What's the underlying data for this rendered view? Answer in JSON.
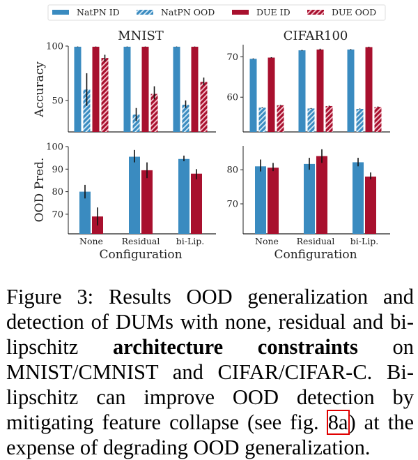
{
  "legend": [
    {
      "label": "NatPN ID",
      "color": "#3a8bc0",
      "hatched": false
    },
    {
      "label": "NatPN OOD",
      "color": "#3a8bc0",
      "hatched": true
    },
    {
      "label": "DUE ID",
      "color": "#a8102e",
      "hatched": false
    },
    {
      "label": "DUE OOD",
      "color": "#a8102e",
      "hatched": true
    }
  ],
  "chart_data": [
    {
      "type": "bar",
      "panel": "top-left",
      "title": "MNIST",
      "ylabel": "Accuracy",
      "xlabel": "",
      "categories": [
        "None",
        "Residual",
        "bi-Lip."
      ],
      "show_xticklabels": false,
      "ylim": [
        21,
        100
      ],
      "yticks": [
        50,
        100
      ],
      "series": [
        {
          "name": "NatPN ID",
          "values": [
            99.4,
            99.4,
            99.4
          ],
          "err_low": [
            99.2,
            99.2,
            99.2
          ],
          "err_high": [
            99.6,
            99.6,
            99.6
          ]
        },
        {
          "name": "NatPN OOD",
          "values": [
            60,
            37,
            46
          ],
          "err_low": [
            45,
            31,
            43
          ],
          "err_high": [
            75,
            43,
            50
          ]
        },
        {
          "name": "DUE ID",
          "values": [
            99.4,
            99.4,
            99.4
          ],
          "err_low": [
            99.2,
            99.2,
            99.2
          ],
          "err_high": [
            99.6,
            99.6,
            99.6
          ]
        },
        {
          "name": "DUE OOD",
          "values": [
            89,
            56,
            67
          ],
          "err_low": [
            86,
            51,
            64
          ],
          "err_high": [
            92,
            63,
            71
          ]
        }
      ]
    },
    {
      "type": "bar",
      "panel": "top-right",
      "title": "CIFAR100",
      "ylabel": "",
      "xlabel": "",
      "categories": [
        "None",
        "Residual",
        "bi-Lip."
      ],
      "show_xticklabels": false,
      "ylim": [
        51.4,
        73
      ],
      "yticks": [
        60,
        70
      ],
      "series": [
        {
          "name": "NatPN ID",
          "values": [
            69.5,
            71.6,
            71.8
          ],
          "err_low": [
            69.4,
            71.5,
            71.7
          ],
          "err_high": [
            69.6,
            71.7,
            71.9
          ]
        },
        {
          "name": "NatPN OOD",
          "values": [
            57.4,
            57.2,
            57.1
          ],
          "err_low": [
            57.3,
            57.1,
            57.0
          ],
          "err_high": [
            57.5,
            57.3,
            57.2
          ]
        },
        {
          "name": "DUE ID",
          "values": [
            69.8,
            71.8,
            72.4
          ],
          "err_low": [
            69.7,
            71.6,
            72.3
          ],
          "err_high": [
            69.9,
            72.0,
            72.5
          ]
        },
        {
          "name": "DUE OOD",
          "values": [
            58.0,
            57.8,
            57.6
          ],
          "err_low": [
            57.9,
            57.7,
            57.5
          ],
          "err_high": [
            58.1,
            57.9,
            57.7
          ]
        }
      ]
    },
    {
      "type": "bar",
      "panel": "bottom-left",
      "title": "",
      "ylabel": "OOD Pred.",
      "xlabel": "Configuration",
      "categories": [
        "None",
        "Residual",
        "bi-Lip."
      ],
      "show_xticklabels": true,
      "ylim": [
        61.3,
        100
      ],
      "yticks": [
        70,
        80,
        90,
        100
      ],
      "series": [
        {
          "name": "NatPN",
          "values": [
            80,
            95.5,
            94.5
          ],
          "err_low": [
            77,
            93,
            93.5
          ],
          "err_high": [
            83,
            98.5,
            96
          ]
        },
        {
          "name": "DUE",
          "values": [
            69,
            89.5,
            88
          ],
          "err_low": [
            65,
            86,
            85.5
          ],
          "err_high": [
            73,
            93,
            90
          ]
        }
      ]
    },
    {
      "type": "bar",
      "panel": "bottom-right",
      "title": "",
      "ylabel": "",
      "xlabel": "Configuration",
      "categories": [
        "None",
        "Residual",
        "bi-Lip."
      ],
      "show_xticklabels": true,
      "ylim": [
        61.2,
        87
      ],
      "yticks": [
        70,
        80
      ],
      "series": [
        {
          "name": "NatPN",
          "values": [
            81,
            81.7,
            82.2
          ],
          "err_low": [
            79.5,
            80,
            81
          ],
          "err_high": [
            83,
            83.5,
            83.5
          ]
        },
        {
          "name": "DUE",
          "values": [
            80.6,
            84,
            78
          ],
          "err_low": [
            79.6,
            82,
            77.2
          ],
          "err_high": [
            82,
            86,
            79.2
          ]
        }
      ]
    }
  ],
  "caption": {
    "label": "Figure 3:",
    "text_1": " Results OOD generalization and detection of DUMs with none, residual and bi-lipschitz ",
    "bold": "architecture constraints",
    "text_2": " on MNIST/CMNIST and CIFAR/CIFAR-C. Bi-lipschitz can improve OOD detection by mitigating feature collapse (see fig. ",
    "ref": "8a",
    "text_3": ") at the expense of degrading OOD generalization."
  }
}
